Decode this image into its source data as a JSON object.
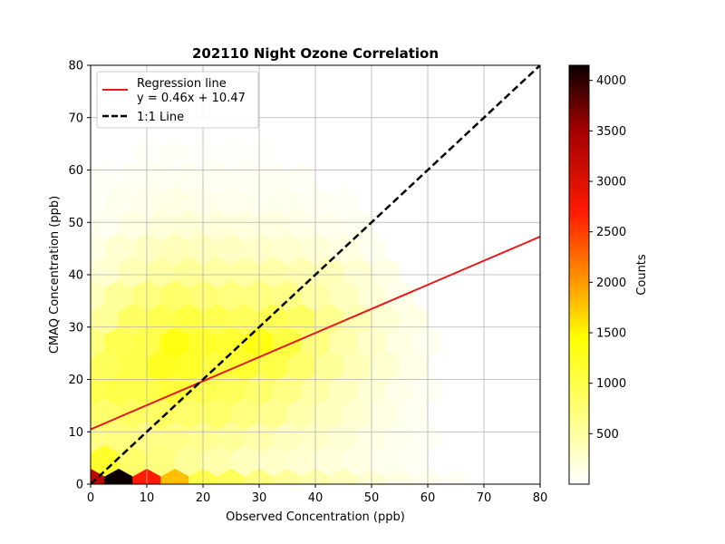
{
  "chart_data": {
    "type": "hexbin",
    "title": "202110 Night Ozone Correlation",
    "xlabel": "Observed Concentration (ppb)",
    "ylabel": "CMAQ Concentration (ppb)",
    "xlim": [
      0,
      80
    ],
    "ylim": [
      0,
      80
    ],
    "xticks": [
      0,
      10,
      20,
      30,
      40,
      50,
      60,
      70,
      80
    ],
    "yticks": [
      0,
      10,
      20,
      30,
      40,
      50,
      60,
      70,
      80
    ],
    "grid": true,
    "colormap": "hot_r",
    "colorbar": {
      "label": "Counts",
      "range": [
        0,
        4150
      ],
      "ticks": [
        500,
        1000,
        1500,
        2000,
        2500,
        3000,
        3500,
        4000
      ]
    },
    "regression": {
      "slope": 0.46,
      "intercept": 10.47,
      "color": "#e41a1c"
    },
    "identity_line": {
      "color": "#000000"
    },
    "legend": {
      "placement": "upper-left",
      "entries": [
        {
          "label": "Regression line",
          "sub": "y = 0.46x + 10.47",
          "style": "solid",
          "color": "#e41a1c"
        },
        {
          "label": "1:1 Line",
          "style": "dashed",
          "color": "#000000"
        }
      ]
    },
    "hex_bins": [
      {
        "x": 0,
        "y": 0,
        "c": 3300
      },
      {
        "x": 5,
        "y": 0,
        "c": 4150
      },
      {
        "x": 10,
        "y": 0,
        "c": 2700
      },
      {
        "x": 15,
        "y": 0,
        "c": 1800
      },
      {
        "x": 20,
        "y": 0,
        "c": 1000
      },
      {
        "x": 25,
        "y": 0,
        "c": 900
      },
      {
        "x": 30,
        "y": 0,
        "c": 700
      },
      {
        "x": 35,
        "y": 0,
        "c": 550
      },
      {
        "x": 40,
        "y": 0,
        "c": 450
      },
      {
        "x": 45,
        "y": 0,
        "c": 350
      },
      {
        "x": 50,
        "y": 0,
        "c": 250
      },
      {
        "x": 55,
        "y": 0,
        "c": 150
      },
      {
        "x": 60,
        "y": 0,
        "c": 90
      },
      {
        "x": 65,
        "y": 0,
        "c": 50
      },
      {
        "x": 2.5,
        "y": 4.5,
        "c": 1200
      },
      {
        "x": 7.5,
        "y": 4.5,
        "c": 800
      },
      {
        "x": 12.5,
        "y": 4.5,
        "c": 700
      },
      {
        "x": 17.5,
        "y": 4.5,
        "c": 550
      },
      {
        "x": 22.5,
        "y": 4.5,
        "c": 450
      },
      {
        "x": 27.5,
        "y": 4.5,
        "c": 350
      },
      {
        "x": 32.5,
        "y": 4.5,
        "c": 300
      },
      {
        "x": 37.5,
        "y": 4.5,
        "c": 250
      },
      {
        "x": 42.5,
        "y": 4.5,
        "c": 200
      },
      {
        "x": 47.5,
        "y": 4.5,
        "c": 150
      },
      {
        "x": 52.5,
        "y": 4.5,
        "c": 100
      },
      {
        "x": 57.5,
        "y": 4.5,
        "c": 60
      },
      {
        "x": 0,
        "y": 9,
        "c": 650
      },
      {
        "x": 5,
        "y": 9,
        "c": 700
      },
      {
        "x": 10,
        "y": 9,
        "c": 650
      },
      {
        "x": 15,
        "y": 9,
        "c": 650
      },
      {
        "x": 20,
        "y": 9,
        "c": 600
      },
      {
        "x": 25,
        "y": 9,
        "c": 550
      },
      {
        "x": 30,
        "y": 9,
        "c": 450
      },
      {
        "x": 35,
        "y": 9,
        "c": 350
      },
      {
        "x": 40,
        "y": 9,
        "c": 300
      },
      {
        "x": 45,
        "y": 9,
        "c": 220
      },
      {
        "x": 50,
        "y": 9,
        "c": 150
      },
      {
        "x": 55,
        "y": 9,
        "c": 90
      },
      {
        "x": 60,
        "y": 9,
        "c": 50
      },
      {
        "x": 2.5,
        "y": 13.5,
        "c": 800
      },
      {
        "x": 7.5,
        "y": 13.5,
        "c": 850
      },
      {
        "x": 12.5,
        "y": 13.5,
        "c": 850
      },
      {
        "x": 17.5,
        "y": 13.5,
        "c": 800
      },
      {
        "x": 22.5,
        "y": 13.5,
        "c": 800
      },
      {
        "x": 27.5,
        "y": 13.5,
        "c": 700
      },
      {
        "x": 32.5,
        "y": 13.5,
        "c": 600
      },
      {
        "x": 37.5,
        "y": 13.5,
        "c": 450
      },
      {
        "x": 42.5,
        "y": 13.5,
        "c": 350
      },
      {
        "x": 47.5,
        "y": 13.5,
        "c": 250
      },
      {
        "x": 52.5,
        "y": 13.5,
        "c": 150
      },
      {
        "x": 57.5,
        "y": 13.5,
        "c": 80
      },
      {
        "x": 0,
        "y": 18,
        "c": 950
      },
      {
        "x": 5,
        "y": 18,
        "c": 1000
      },
      {
        "x": 10,
        "y": 18,
        "c": 1000
      },
      {
        "x": 15,
        "y": 18,
        "c": 1100
      },
      {
        "x": 20,
        "y": 18,
        "c": 950
      },
      {
        "x": 25,
        "y": 18,
        "c": 900
      },
      {
        "x": 30,
        "y": 18,
        "c": 800
      },
      {
        "x": 35,
        "y": 18,
        "c": 650
      },
      {
        "x": 40,
        "y": 18,
        "c": 500
      },
      {
        "x": 45,
        "y": 18,
        "c": 350
      },
      {
        "x": 50,
        "y": 18,
        "c": 220
      },
      {
        "x": 55,
        "y": 18,
        "c": 120
      },
      {
        "x": 60,
        "y": 18,
        "c": 60
      },
      {
        "x": 2.5,
        "y": 22.5,
        "c": 900
      },
      {
        "x": 7.5,
        "y": 22.5,
        "c": 1000
      },
      {
        "x": 12.5,
        "y": 22.5,
        "c": 1250
      },
      {
        "x": 17.5,
        "y": 22.5,
        "c": 1200
      },
      {
        "x": 22.5,
        "y": 22.5,
        "c": 1050
      },
      {
        "x": 27.5,
        "y": 22.5,
        "c": 1150
      },
      {
        "x": 32.5,
        "y": 22.5,
        "c": 1000
      },
      {
        "x": 37.5,
        "y": 22.5,
        "c": 800
      },
      {
        "x": 42.5,
        "y": 22.5,
        "c": 550
      },
      {
        "x": 47.5,
        "y": 22.5,
        "c": 380
      },
      {
        "x": 52.5,
        "y": 22.5,
        "c": 250
      },
      {
        "x": 57.5,
        "y": 22.5,
        "c": 130
      },
      {
        "x": 0,
        "y": 27,
        "c": 700
      },
      {
        "x": 5,
        "y": 27,
        "c": 950
      },
      {
        "x": 10,
        "y": 27,
        "c": 1000
      },
      {
        "x": 15,
        "y": 27,
        "c": 1350
      },
      {
        "x": 20,
        "y": 27,
        "c": 1200
      },
      {
        "x": 25,
        "y": 27,
        "c": 1150
      },
      {
        "x": 30,
        "y": 27,
        "c": 1350
      },
      {
        "x": 35,
        "y": 27,
        "c": 1050
      },
      {
        "x": 40,
        "y": 27,
        "c": 700
      },
      {
        "x": 45,
        "y": 27,
        "c": 450
      },
      {
        "x": 50,
        "y": 27,
        "c": 300
      },
      {
        "x": 55,
        "y": 27,
        "c": 160
      },
      {
        "x": 60,
        "y": 27,
        "c": 80
      },
      {
        "x": 2.5,
        "y": 31.5,
        "c": 550
      },
      {
        "x": 7.5,
        "y": 31.5,
        "c": 850
      },
      {
        "x": 12.5,
        "y": 31.5,
        "c": 950
      },
      {
        "x": 17.5,
        "y": 31.5,
        "c": 1050
      },
      {
        "x": 22.5,
        "y": 31.5,
        "c": 950
      },
      {
        "x": 27.5,
        "y": 31.5,
        "c": 900
      },
      {
        "x": 32.5,
        "y": 31.5,
        "c": 950
      },
      {
        "x": 37.5,
        "y": 31.5,
        "c": 850
      },
      {
        "x": 42.5,
        "y": 31.5,
        "c": 600
      },
      {
        "x": 47.5,
        "y": 31.5,
        "c": 400
      },
      {
        "x": 52.5,
        "y": 31.5,
        "c": 250
      },
      {
        "x": 57.5,
        "y": 31.5,
        "c": 140
      },
      {
        "x": 0,
        "y": 36,
        "c": 350
      },
      {
        "x": 5,
        "y": 36,
        "c": 550
      },
      {
        "x": 10,
        "y": 36,
        "c": 700
      },
      {
        "x": 15,
        "y": 36,
        "c": 800
      },
      {
        "x": 20,
        "y": 36,
        "c": 750
      },
      {
        "x": 25,
        "y": 36,
        "c": 700
      },
      {
        "x": 30,
        "y": 36,
        "c": 700
      },
      {
        "x": 35,
        "y": 36,
        "c": 650
      },
      {
        "x": 40,
        "y": 36,
        "c": 500
      },
      {
        "x": 45,
        "y": 36,
        "c": 350
      },
      {
        "x": 50,
        "y": 36,
        "c": 220
      },
      {
        "x": 55,
        "y": 36,
        "c": 120
      },
      {
        "x": 2.5,
        "y": 40.5,
        "c": 250
      },
      {
        "x": 7.5,
        "y": 40.5,
        "c": 400
      },
      {
        "x": 12.5,
        "y": 40.5,
        "c": 500
      },
      {
        "x": 17.5,
        "y": 40.5,
        "c": 550
      },
      {
        "x": 22.5,
        "y": 40.5,
        "c": 500
      },
      {
        "x": 27.5,
        "y": 40.5,
        "c": 500
      },
      {
        "x": 32.5,
        "y": 40.5,
        "c": 480
      },
      {
        "x": 37.5,
        "y": 40.5,
        "c": 420
      },
      {
        "x": 42.5,
        "y": 40.5,
        "c": 380
      },
      {
        "x": 47.5,
        "y": 40.5,
        "c": 250
      },
      {
        "x": 52.5,
        "y": 40.5,
        "c": 150
      },
      {
        "x": 0,
        "y": 45,
        "c": 150
      },
      {
        "x": 5,
        "y": 45,
        "c": 250
      },
      {
        "x": 10,
        "y": 45,
        "c": 320
      },
      {
        "x": 15,
        "y": 45,
        "c": 380
      },
      {
        "x": 20,
        "y": 45,
        "c": 350
      },
      {
        "x": 25,
        "y": 45,
        "c": 320
      },
      {
        "x": 30,
        "y": 45,
        "c": 300
      },
      {
        "x": 35,
        "y": 45,
        "c": 260
      },
      {
        "x": 40,
        "y": 45,
        "c": 220
      },
      {
        "x": 45,
        "y": 45,
        "c": 160
      },
      {
        "x": 50,
        "y": 45,
        "c": 100
      },
      {
        "x": 2.5,
        "y": 49.5,
        "c": 90
      },
      {
        "x": 7.5,
        "y": 49.5,
        "c": 150
      },
      {
        "x": 12.5,
        "y": 49.5,
        "c": 200
      },
      {
        "x": 17.5,
        "y": 49.5,
        "c": 220
      },
      {
        "x": 22.5,
        "y": 49.5,
        "c": 200
      },
      {
        "x": 27.5,
        "y": 49.5,
        "c": 180
      },
      {
        "x": 32.5,
        "y": 49.5,
        "c": 170
      },
      {
        "x": 37.5,
        "y": 49.5,
        "c": 140
      },
      {
        "x": 42.5,
        "y": 49.5,
        "c": 110
      },
      {
        "x": 47.5,
        "y": 49.5,
        "c": 80
      },
      {
        "x": 0,
        "y": 54,
        "c": 50
      },
      {
        "x": 5,
        "y": 54,
        "c": 90
      },
      {
        "x": 10,
        "y": 54,
        "c": 120
      },
      {
        "x": 15,
        "y": 54,
        "c": 140
      },
      {
        "x": 20,
        "y": 54,
        "c": 120
      },
      {
        "x": 25,
        "y": 54,
        "c": 110
      },
      {
        "x": 30,
        "y": 54,
        "c": 100
      },
      {
        "x": 35,
        "y": 54,
        "c": 90
      },
      {
        "x": 40,
        "y": 54,
        "c": 70
      },
      {
        "x": 45,
        "y": 54,
        "c": 50
      },
      {
        "x": 2.5,
        "y": 58.5,
        "c": 40
      },
      {
        "x": 7.5,
        "y": 58.5,
        "c": 60
      },
      {
        "x": 12.5,
        "y": 58.5,
        "c": 80
      },
      {
        "x": 17.5,
        "y": 58.5,
        "c": 80
      },
      {
        "x": 22.5,
        "y": 58.5,
        "c": 70
      },
      {
        "x": 27.5,
        "y": 58.5,
        "c": 60
      },
      {
        "x": 32.5,
        "y": 58.5,
        "c": 60
      },
      {
        "x": 37.5,
        "y": 58.5,
        "c": 50
      },
      {
        "x": 10,
        "y": 63,
        "c": 40
      },
      {
        "x": 15,
        "y": 63,
        "c": 45
      },
      {
        "x": 20,
        "y": 63,
        "c": 40
      },
      {
        "x": 25,
        "y": 63,
        "c": 35
      },
      {
        "x": 30,
        "y": 63,
        "c": 30
      }
    ]
  }
}
